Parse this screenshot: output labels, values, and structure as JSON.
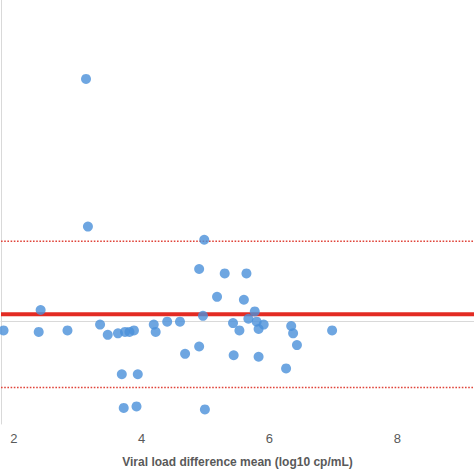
{
  "chart_data": {
    "type": "scatter",
    "x_label": "Viral load difference mean (log10 cp/mL)",
    "xlim": [
      1.8,
      9.2
    ],
    "xticks": [
      2,
      4,
      6,
      8
    ],
    "ylim": [
      -0.7,
      2.2
    ],
    "tick_labels": "x",
    "grid": false,
    "series": [
      {
        "type": "scatter",
        "color": "#4a90d9",
        "marker": "circle",
        "x": [
          1.84,
          2.42,
          2.39,
          2.84,
          3.13,
          3.16,
          3.35,
          3.47,
          3.63,
          3.69,
          3.74,
          3.81,
          3.88,
          3.72,
          3.92,
          3.94,
          4.19,
          4.22,
          4.4,
          4.6,
          4.68,
          4.9,
          4.98,
          4.9,
          4.96,
          4.99,
          5.18,
          5.3,
          5.43,
          5.44,
          5.53,
          5.6,
          5.64,
          5.67,
          5.77,
          5.8,
          5.83,
          5.91,
          5.83,
          6.34,
          6.37,
          6.43,
          6.26,
          6.98
        ],
        "values": [
          -0.06,
          0.08,
          -0.07,
          -0.06,
          1.66,
          0.65,
          -0.02,
          -0.09,
          -0.08,
          -0.36,
          -0.07,
          -0.07,
          -0.06,
          -0.59,
          -0.58,
          -0.36,
          -0.02,
          -0.07,
          0.0,
          0.0,
          -0.22,
          -0.17,
          0.56,
          0.36,
          0.04,
          -0.6,
          0.17,
          0.33,
          -0.01,
          -0.23,
          -0.06,
          0.15,
          0.33,
          0.02,
          0.07,
          0.0,
          -0.05,
          -0.02,
          -0.24,
          -0.03,
          -0.08,
          -0.16,
          -0.32,
          -0.06
        ]
      },
      {
        "type": "hline",
        "color": "#e0443a",
        "line_style": "dotted",
        "values": [
          0.55
        ]
      },
      {
        "type": "hline",
        "color": "#e0443a",
        "line_style": "dotted",
        "values": [
          -0.45
        ]
      },
      {
        "type": "hline",
        "color": "#e32b23",
        "line_style": "solid",
        "values": [
          0.05
        ]
      }
    ]
  }
}
